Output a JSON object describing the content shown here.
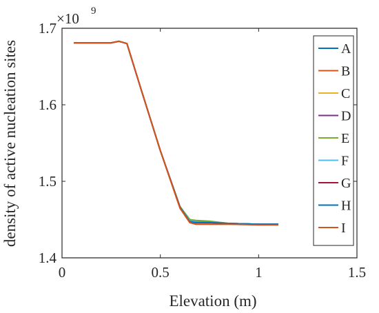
{
  "chart_data": {
    "type": "line",
    "xlabel": "Elevation (m)",
    "ylabel": "density of active nucleation sites",
    "exponent_label": "×10",
    "exponent_power": "9",
    "xlim": [
      0,
      1.5
    ],
    "ylim": [
      1400000000.0,
      1700000000.0
    ],
    "x_ticks": [
      0,
      0.5,
      1,
      1.5
    ],
    "x_tick_labels": [
      "0",
      "0.5",
      "1",
      "1.5"
    ],
    "y_ticks": [
      1400000000.0,
      1500000000.0,
      1600000000.0,
      1700000000.0
    ],
    "y_tick_labels": [
      "1.4",
      "1.5",
      "1.6",
      "1.7"
    ],
    "grid": false,
    "legend_position": "top-right",
    "series": [
      {
        "name": "A",
        "color": "#0072BD",
        "x": [
          0.06,
          0.15,
          0.25,
          0.29,
          0.33,
          0.4,
          0.5,
          0.6,
          0.65,
          0.68,
          0.75,
          0.85,
          1.0,
          1.1
        ],
        "y": [
          1681000000.0,
          1681000000.0,
          1681000000.0,
          1683000000.0,
          1680000000.0,
          1622000000.0,
          1540000000.0,
          1467000000.0,
          1449000000.0,
          1448000000.0,
          1447000000.0,
          1445000000.0,
          1444000000.0,
          1444000000.0
        ]
      },
      {
        "name": "B",
        "color": "#D95319",
        "x": [
          0.06,
          0.15,
          0.25,
          0.29,
          0.33,
          0.4,
          0.5,
          0.6,
          0.65,
          0.68,
          0.75,
          0.85,
          1.0,
          1.1
        ],
        "y": [
          1681000000.0,
          1681000000.0,
          1681000000.0,
          1683000000.0,
          1680000000.0,
          1622000000.0,
          1540000000.0,
          1465000000.0,
          1446000000.0,
          1444000000.0,
          1444000000.0,
          1444000000.0,
          1444000000.0,
          1444000000.0
        ]
      },
      {
        "name": "C",
        "color": "#EDB120",
        "x": [
          0.06,
          0.15,
          0.25,
          0.29,
          0.33,
          0.4,
          0.5,
          0.6,
          0.65,
          0.68,
          0.75,
          0.85,
          1.0,
          1.1
        ],
        "y": [
          1681000000.0,
          1681000000.0,
          1681000000.0,
          1683000000.0,
          1680000000.0,
          1622000000.0,
          1540000000.0,
          1466000000.0,
          1447000000.0,
          1446000000.0,
          1446000000.0,
          1445000000.0,
          1444000000.0,
          1444000000.0
        ]
      },
      {
        "name": "D",
        "color": "#7E2F8E",
        "x": [
          0.06,
          0.15,
          0.25,
          0.29,
          0.33,
          0.4,
          0.5,
          0.6,
          0.65,
          0.68,
          0.75,
          0.85,
          1.0,
          1.1
        ],
        "y": [
          1681000000.0,
          1681000000.0,
          1681000000.0,
          1683000000.0,
          1680000000.0,
          1622000000.0,
          1540000000.0,
          1466000000.0,
          1448000000.0,
          1447000000.0,
          1446000000.0,
          1445000000.0,
          1444000000.0,
          1444000000.0
        ]
      },
      {
        "name": "E",
        "color": "#77AC30",
        "x": [
          0.06,
          0.15,
          0.25,
          0.29,
          0.33,
          0.4,
          0.5,
          0.6,
          0.65,
          0.68,
          0.75,
          0.85,
          1.0,
          1.1
        ],
        "y": [
          1681000000.0,
          1681000000.0,
          1681000000.0,
          1683000000.0,
          1680000000.0,
          1622000000.0,
          1540000000.0,
          1467000000.0,
          1450000000.0,
          1449000000.0,
          1448000000.0,
          1445000000.0,
          1444000000.0,
          1444000000.0
        ]
      },
      {
        "name": "F",
        "color": "#4DBEEE",
        "x": [
          0.06,
          0.15,
          0.25,
          0.29,
          0.33,
          0.4,
          0.5,
          0.6,
          0.65,
          0.68,
          0.75,
          0.85,
          1.0,
          1.1
        ],
        "y": [
          1681000000.0,
          1681000000.0,
          1681000000.0,
          1683000000.0,
          1680000000.0,
          1622000000.0,
          1540000000.0,
          1466000000.0,
          1448000000.0,
          1447000000.0,
          1446000000.0,
          1445000000.0,
          1444000000.0,
          1444000000.0
        ]
      },
      {
        "name": "G",
        "color": "#A2142F",
        "x": [
          0.06,
          0.15,
          0.25,
          0.29,
          0.33,
          0.4,
          0.5,
          0.6,
          0.65,
          0.68,
          0.75,
          0.85,
          1.0,
          1.1
        ],
        "y": [
          1681000000.0,
          1681000000.0,
          1681000000.0,
          1683000000.0,
          1680000000.0,
          1622000000.0,
          1540000000.0,
          1466000000.0,
          1447000000.0,
          1446000000.0,
          1446000000.0,
          1445000000.0,
          1444000000.0,
          1444000000.0
        ]
      },
      {
        "name": "H",
        "color": "#0072BD",
        "x": [
          0.06,
          0.15,
          0.25,
          0.29,
          0.33,
          0.4,
          0.5,
          0.6,
          0.65,
          0.68,
          0.75,
          0.85,
          1.0,
          1.1
        ],
        "y": [
          1681000000.0,
          1681000000.0,
          1681000000.0,
          1683000000.0,
          1680000000.0,
          1622000000.0,
          1540000000.0,
          1466000000.0,
          1447000000.0,
          1446000000.0,
          1446000000.0,
          1445000000.0,
          1444000000.0,
          1444000000.0
        ]
      },
      {
        "name": "I",
        "color": "#D95319",
        "x": [
          0.06,
          0.15,
          0.25,
          0.29,
          0.33,
          0.4,
          0.5,
          0.6,
          0.65,
          0.68,
          0.75,
          0.85,
          1.0,
          1.1
        ],
        "y": [
          1681000000.0,
          1681000000.0,
          1681000000.0,
          1683000000.0,
          1680000000.0,
          1622000000.0,
          1540000000.0,
          1465000000.0,
          1446000000.0,
          1444000000.0,
          1444000000.0,
          1444000000.0,
          1443000000.0,
          1443000000.0
        ]
      }
    ]
  }
}
